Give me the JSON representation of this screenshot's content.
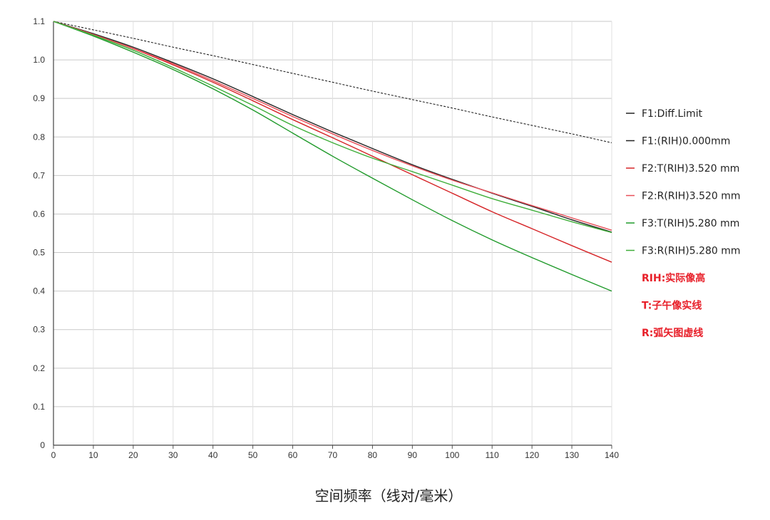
{
  "chart_data": {
    "type": "line",
    "xlabel": "空间频率（线对/毫米）",
    "ylabel": "",
    "xlim": [
      0,
      140
    ],
    "ylim": [
      0,
      1.1
    ],
    "x_ticks": [
      "0",
      "10",
      "20",
      "30",
      "40",
      "50",
      "60",
      "70",
      "80",
      "90",
      "100",
      "110",
      "120",
      "130",
      "140"
    ],
    "y_ticks": [
      "0",
      "0.1",
      "0.2",
      "0.3",
      "0.4",
      "0.5",
      "0.6",
      "0.7",
      "0.8",
      "0.9",
      "1.0",
      "1.1"
    ],
    "grid": true,
    "legend_position": "right",
    "x": [
      0,
      10,
      20,
      30,
      40,
      50,
      60,
      70,
      80,
      90,
      100,
      110,
      120,
      130,
      140
    ],
    "series": [
      {
        "name": "F1:Diff.Limit",
        "color": "#222222",
        "dashed": true,
        "values": [
          1.1,
          1.078,
          1.056,
          1.033,
          1.011,
          0.988,
          0.965,
          0.942,
          0.919,
          0.897,
          0.875,
          0.852,
          0.83,
          0.808,
          0.785
        ]
      },
      {
        "name": "F1:(RIH)0.000mm",
        "color": "#222222",
        "dashed": false,
        "values": [
          1.1,
          1.068,
          1.033,
          0.993,
          0.951,
          0.905,
          0.858,
          0.813,
          0.77,
          0.728,
          0.69,
          0.654,
          0.62,
          0.585,
          0.553
        ]
      },
      {
        "name": "F2:T(RIH)3.520 mm",
        "color": "#d62528",
        "dashed": false,
        "values": [
          1.1,
          1.066,
          1.029,
          0.987,
          0.942,
          0.894,
          0.845,
          0.798,
          0.75,
          0.702,
          0.654,
          0.606,
          0.562,
          0.518,
          0.475
        ]
      },
      {
        "name": "F2:R(RIH)3.520 mm",
        "color": "#e8505a",
        "dashed": false,
        "values": [
          1.1,
          1.066,
          1.03,
          0.99,
          0.946,
          0.9,
          0.853,
          0.808,
          0.765,
          0.725,
          0.688,
          0.655,
          0.622,
          0.59,
          0.558
        ]
      },
      {
        "name": "F3:T(RIH)5.280 mm",
        "color": "#1f9a2a",
        "dashed": false,
        "values": [
          1.1,
          1.062,
          1.02,
          0.975,
          0.925,
          0.87,
          0.81,
          0.75,
          0.693,
          0.637,
          0.583,
          0.533,
          0.487,
          0.443,
          0.4
        ]
      },
      {
        "name": "F3:R(RIH)5.280 mm",
        "color": "#3fae3a",
        "dashed": false,
        "values": [
          1.1,
          1.064,
          1.025,
          0.98,
          0.932,
          0.882,
          0.83,
          0.785,
          0.745,
          0.71,
          0.675,
          0.64,
          0.61,
          0.58,
          0.552
        ]
      }
    ],
    "notes": [
      "RIH:实际像高",
      "T:子午像实线",
      "R:弧矢图虚线"
    ],
    "note_color": "#e8202a"
  }
}
